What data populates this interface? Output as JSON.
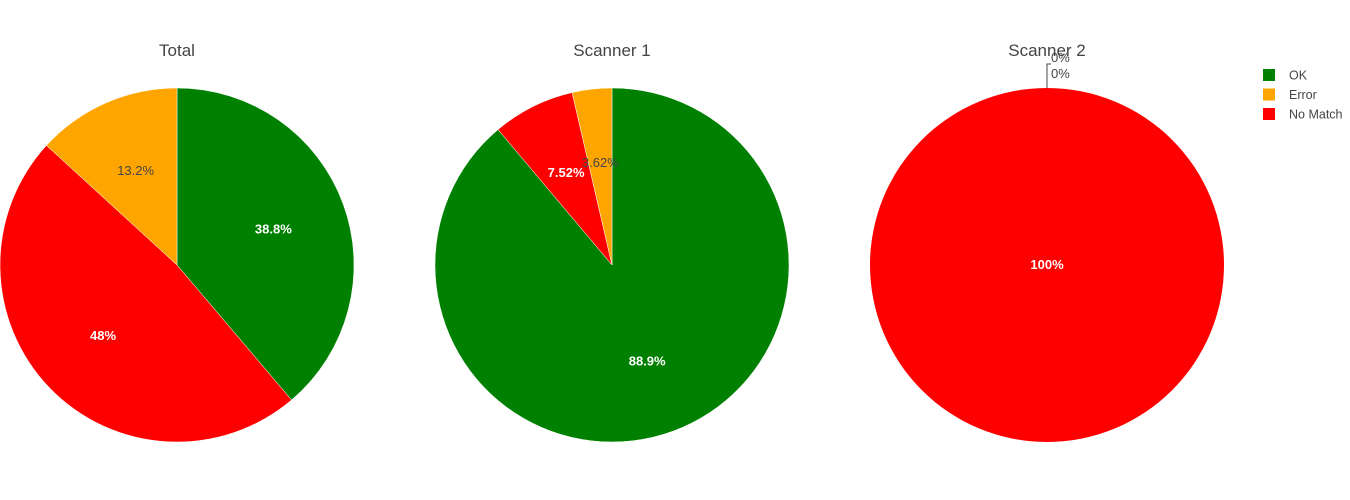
{
  "chart_data": [
    {
      "type": "pie",
      "title": "Total",
      "labels": [
        "OK",
        "Error",
        "No Match"
      ],
      "values": [
        38.8,
        13.2,
        48
      ],
      "text_labels": [
        "38.8%",
        "13.2%",
        "48%"
      ]
    },
    {
      "type": "pie",
      "title": "Scanner 1",
      "labels": [
        "OK",
        "Error",
        "No Match"
      ],
      "values": [
        88.9,
        3.62,
        7.52
      ],
      "text_labels": [
        "88.9%",
        "3.62%",
        "7.52%"
      ]
    },
    {
      "type": "pie",
      "title": "Scanner 2",
      "labels": [
        "OK",
        "Error",
        "No Match"
      ],
      "values": [
        0,
        0,
        100
      ],
      "text_labels": [
        "0%",
        "0%",
        "100%"
      ]
    }
  ],
  "legend": {
    "placement": "top-right",
    "items": [
      {
        "label": "OK",
        "color": "#008000"
      },
      {
        "label": "Error",
        "color": "#FFA500"
      },
      {
        "label": "No Match",
        "color": "#FF0000"
      }
    ]
  }
}
